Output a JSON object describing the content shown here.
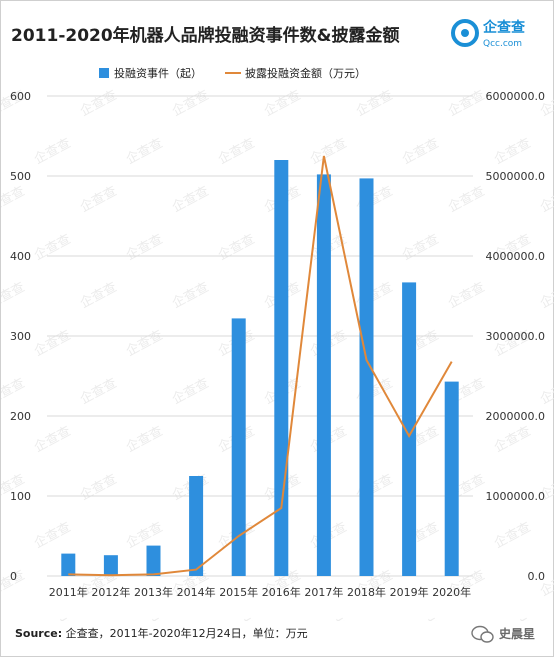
{
  "title": "2011-2020年机器人品牌投融资事件数&披露金额",
  "logo": {
    "name": "企查查",
    "sub": "Qcc.com"
  },
  "source": {
    "label": "Source:",
    "text": "企查查，2011年-2020年12月24日，单位：万元"
  },
  "watermark": {
    "account": "史晨星",
    "tile_text": "企查查"
  },
  "colors": {
    "bars": "#2e8fde",
    "line": "#e0883a",
    "accent": "#1a8fd6"
  },
  "chart_data": {
    "type": "bar",
    "title": "2011-2020年机器人品牌投融资事件数&披露金额",
    "categories": [
      "2011年",
      "2012年",
      "2013年",
      "2014年",
      "2015年",
      "2016年",
      "2017年",
      "2018年",
      "2019年",
      "2020年"
    ],
    "series": [
      {
        "name": "投融资事件（起）",
        "type": "bar",
        "axis": "left",
        "values": [
          28,
          26,
          38,
          125,
          322,
          520,
          502,
          497,
          367,
          243
        ]
      },
      {
        "name": "披露投融资金额（万元）",
        "type": "line",
        "axis": "right",
        "values": [
          20000,
          10000,
          20000,
          80000,
          500000,
          850000,
          5250000,
          2700000,
          1750000,
          2680000
        ]
      }
    ],
    "ylim_left": [
      0,
      600
    ],
    "yticks_left": [
      "0",
      "100",
      "200",
      "300",
      "400",
      "500",
      "600"
    ],
    "ylim_right": [
      0,
      6000000
    ],
    "yticks_right": [
      "0.0",
      "1000000.0",
      "2000000.0",
      "3000000.0",
      "4000000.0",
      "5000000.0",
      "6000000.0"
    ],
    "grid": true,
    "legend": "top-center"
  }
}
